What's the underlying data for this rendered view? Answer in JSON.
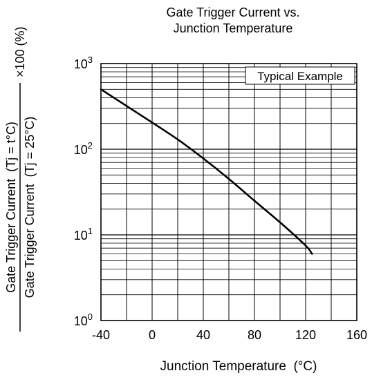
{
  "chart_data": {
    "type": "line",
    "title_lines": [
      "Gate Trigger Current vs.",
      "Junction Temperature"
    ],
    "xlabel": "Junction Temperature  (°C)",
    "ylabel": {
      "numerator": "Gate Trigger Current  (Tj = t°C)",
      "denominator": "Gate Trigger Current  (Tj = 25°C)",
      "multiplier": "×100 (%)"
    },
    "legend_text": "Typical Example",
    "legend_placement": "top-right",
    "x_scale": "linear",
    "y_scale": "log",
    "xlim": [
      -40,
      160
    ],
    "ylim": [
      1,
      1000
    ],
    "grid": true,
    "x_ticks": [
      {
        "value": -40,
        "label": "-40"
      },
      {
        "value": 0,
        "label": "0"
      },
      {
        "value": 40,
        "label": "40"
      },
      {
        "value": 80,
        "label": "80"
      },
      {
        "value": 120,
        "label": "120"
      },
      {
        "value": 160,
        "label": "160"
      }
    ],
    "y_ticks": [
      {
        "value": 1,
        "base": "10",
        "exp": "0"
      },
      {
        "value": 10,
        "base": "10",
        "exp": "1"
      },
      {
        "value": 100,
        "base": "10",
        "exp": "2"
      },
      {
        "value": 1000,
        "base": "10",
        "exp": "3"
      }
    ],
    "series": [
      {
        "color": "#000000",
        "x": [
          -40,
          -20,
          0,
          20,
          40,
          60,
          80,
          100,
          120,
          125
        ],
        "y": [
          500,
          320,
          205,
          130,
          78,
          45,
          25,
          14,
          7.5,
          6
        ]
      }
    ]
  }
}
